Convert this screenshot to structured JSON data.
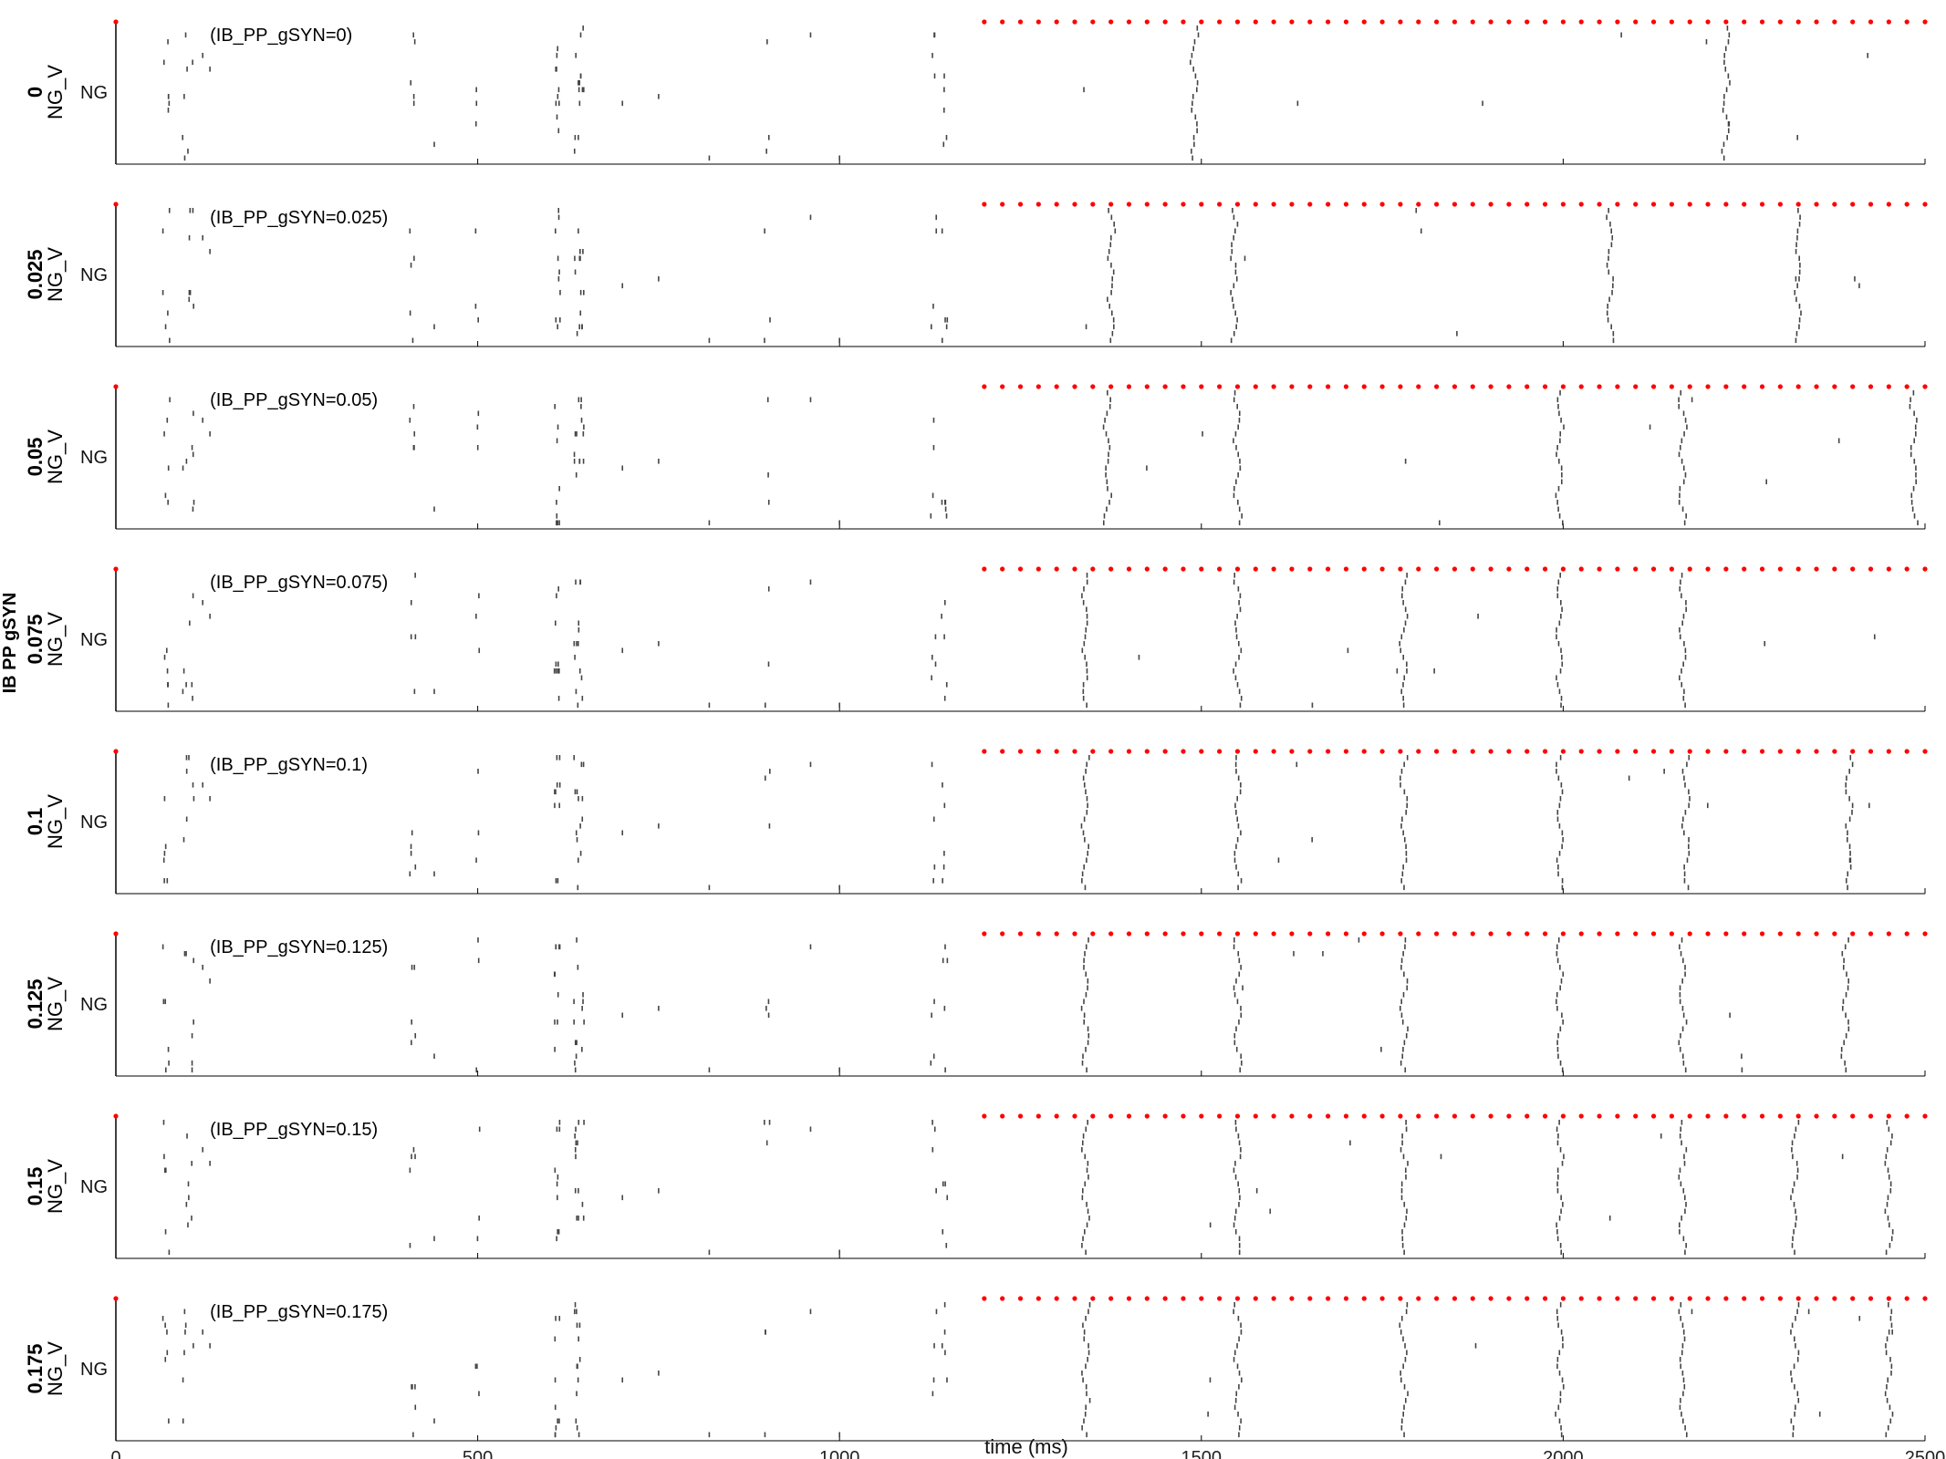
{
  "chart_data": {
    "type": "scatter",
    "plot_kind": "spike raster (stacked panels)",
    "xlabel": "time (ms)",
    "xlim": [
      0,
      2500
    ],
    "xticks": [
      0,
      500,
      1000,
      1500,
      2000,
      2500
    ],
    "group_label": "IB PP gSYN",
    "population_label": "NG",
    "variable_label": "NG_V",
    "colors": {
      "spike": "#444444",
      "input_pulse": "#ff0000",
      "axis": "#000000"
    },
    "input_pulses": {
      "initial": 0,
      "train_start": 1200,
      "train_end": 2500,
      "train_interval": 25
    },
    "panels": [
      {
        "value": "0",
        "annotation": "(IB_PP_gSYN=0)",
        "late_volleys": [
          1490,
          2225
        ]
      },
      {
        "value": "0.025",
        "annotation": "(IB_PP_gSYN=0.025)",
        "late_volleys": [
          1375,
          1545,
          2065,
          2325
        ]
      },
      {
        "value": "0.05",
        "annotation": "(IB_PP_gSYN=0.05)",
        "late_volleys": [
          1370,
          1550,
          1995,
          2165,
          2485
        ]
      },
      {
        "value": "0.075",
        "annotation": "(IB_PP_gSYN=0.075)",
        "late_volleys": [
          1340,
          1550,
          1780,
          1995,
          2165
        ]
      },
      {
        "value": "0.1",
        "annotation": "(IB_PP_gSYN=0.1)",
        "late_volleys": [
          1340,
          1550,
          1780,
          1995,
          2170,
          2395
        ]
      },
      {
        "value": "0.125",
        "annotation": "(IB_PP_gSYN=0.125)",
        "late_volleys": [
          1340,
          1550,
          1780,
          1995,
          2165,
          2390
        ]
      },
      {
        "value": "0.15",
        "annotation": "(IB_PP_gSYN=0.15)",
        "late_volleys": [
          1340,
          1550,
          1780,
          1995,
          2165,
          2320,
          2450
        ]
      },
      {
        "value": "0.175",
        "annotation": "(IB_PP_gSYN=0.175)",
        "late_volleys": [
          1340,
          1550,
          1780,
          1995,
          2165,
          2320,
          2450
        ]
      }
    ],
    "grid": false,
    "legend": "none"
  }
}
